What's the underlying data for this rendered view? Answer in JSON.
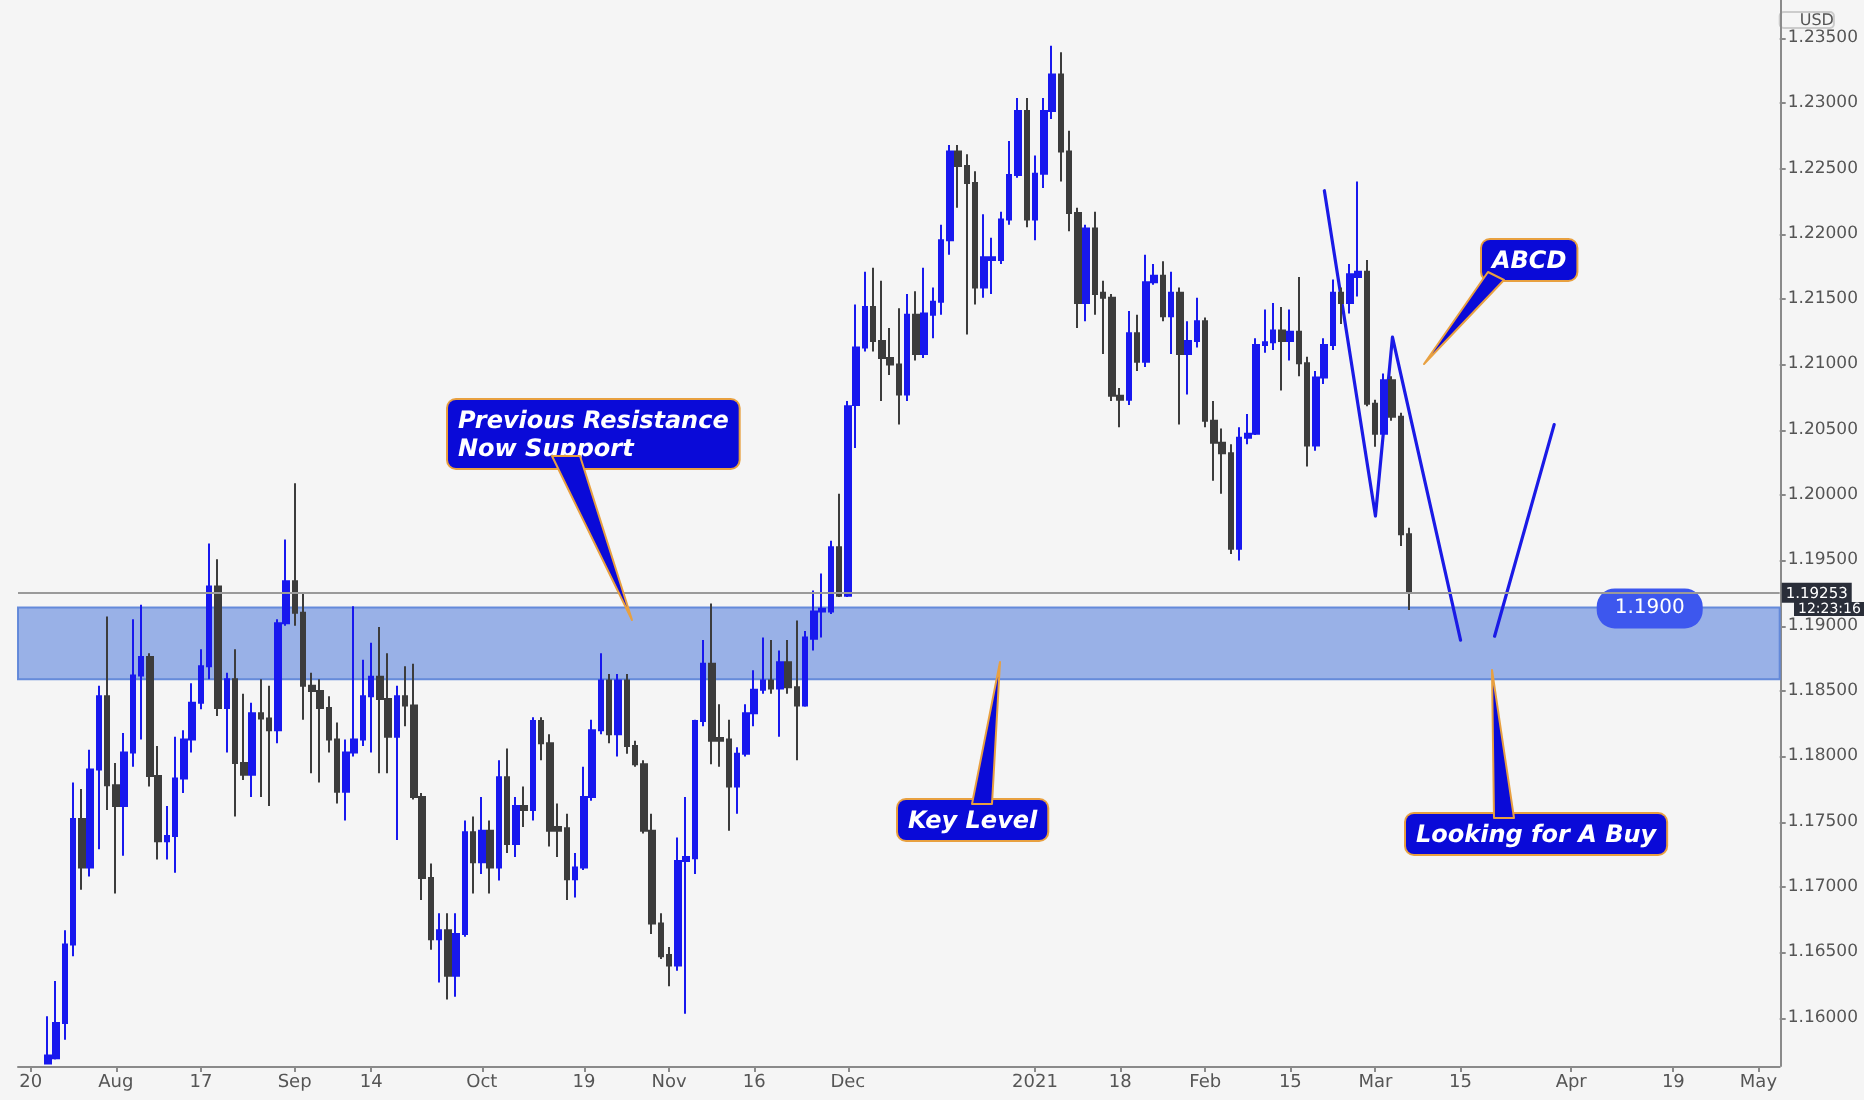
{
  "chart_data": {
    "type": "candlestick",
    "ylabel": "USD",
    "categories": [
      null,
      "20",
      null,
      null,
      null,
      null,
      null,
      null,
      null,
      null,
      null,
      "Aug",
      null,
      null,
      null,
      null,
      null,
      null,
      null,
      null,
      null,
      "17",
      null,
      null,
      null,
      null,
      null,
      null,
      null,
      null,
      null,
      null,
      "Sep",
      null,
      null,
      null,
      null,
      null,
      null,
      null,
      null,
      "14",
      null,
      null,
      null,
      null,
      null,
      null,
      null,
      null,
      null,
      null,
      null,
      null,
      "Oct",
      null,
      null,
      null,
      null,
      null,
      null,
      null,
      null,
      null,
      null,
      null,
      "19",
      null,
      null,
      null,
      null,
      null,
      null,
      null,
      null,
      null,
      "Nov",
      null,
      null,
      null,
      null,
      null,
      null,
      null,
      null,
      null,
      "16",
      null,
      null,
      null,
      null,
      null,
      null,
      null,
      null,
      null,
      null,
      "Dec",
      null,
      null,
      null,
      null,
      null,
      null,
      null,
      null,
      null,
      null,
      null,
      null,
      null,
      null,
      null,
      null,
      null,
      null,
      null,
      null,
      null,
      "2021",
      null,
      null,
      null,
      null,
      null,
      null,
      null,
      null,
      null,
      "18",
      null,
      null,
      null,
      null,
      null,
      null,
      null,
      null,
      null,
      "Feb",
      null,
      null,
      null,
      null,
      null,
      null,
      null,
      null,
      null,
      "15",
      null,
      null,
      null,
      null,
      null,
      null,
      null,
      null,
      null,
      "Mar",
      null,
      null,
      null,
      null,
      null,
      null,
      null,
      null,
      null,
      "15",
      null,
      null,
      null,
      null,
      null,
      null,
      null,
      null,
      null,
      null,
      null,
      null,
      "Apr",
      null,
      null,
      null,
      null,
      null,
      null,
      null,
      null,
      null,
      null,
      null,
      "19",
      null,
      null,
      null,
      null,
      null,
      null,
      null,
      null,
      null,
      "May",
      null,
      null
    ],
    "ohlc": [
      null,
      null,
      null,
      [
        1.1565,
        1.1601,
        1.1565,
        1.1571
      ],
      [
        1.1569,
        1.1628,
        1.1568,
        1.1596
      ],
      [
        1.1596,
        1.1667,
        1.1583,
        1.1656
      ],
      [
        1.1656,
        1.178,
        1.1647,
        1.1752
      ],
      [
        1.1752,
        1.1775,
        1.1698,
        1.1715
      ],
      [
        1.1715,
        1.1805,
        1.1708,
        1.179
      ],
      [
        1.179,
        1.1854,
        1.1729,
        1.1846
      ],
      [
        1.1846,
        1.1907,
        1.1759,
        1.1778
      ],
      [
        1.1778,
        1.1795,
        1.1695,
        1.1762
      ],
      [
        1.1762,
        1.1818,
        1.1724,
        1.1803
      ],
      [
        1.1803,
        1.1905,
        1.1792,
        1.1862
      ],
      [
        1.1862,
        1.1916,
        1.1813,
        1.1876
      ],
      [
        1.1876,
        1.1879,
        1.1777,
        1.1785
      ],
      [
        1.1785,
        1.1808,
        1.1721,
        1.1735
      ],
      [
        1.1735,
        1.1762,
        1.1721,
        1.1739
      ],
      [
        1.1739,
        1.1815,
        1.1711,
        1.1783
      ],
      [
        1.1783,
        1.182,
        1.1772,
        1.1813
      ],
      [
        1.1813,
        1.1856,
        1.1803,
        1.1841
      ],
      [
        1.1841,
        1.1882,
        1.1836,
        1.1869
      ],
      [
        1.1869,
        1.1963,
        1.1859,
        1.193
      ],
      [
        1.193,
        1.1951,
        1.1831,
        1.1837
      ],
      [
        1.1837,
        1.1864,
        1.1803,
        1.1859
      ],
      [
        1.1859,
        1.1882,
        1.1754,
        1.1795
      ],
      [
        1.1795,
        1.1848,
        1.1782,
        1.1786
      ],
      [
        1.1786,
        1.1841,
        1.1769,
        1.1833
      ],
      [
        1.1833,
        1.1859,
        1.1769,
        1.1829
      ],
      [
        1.1829,
        1.1854,
        1.1762,
        1.182
      ],
      [
        1.182,
        1.1905,
        1.181,
        1.1902
      ],
      [
        1.1902,
        1.1966,
        1.19,
        1.1934
      ],
      [
        1.1934,
        1.2009,
        1.19,
        1.191
      ],
      [
        1.191,
        1.1925,
        1.1828,
        1.1854
      ],
      [
        1.1854,
        1.1864,
        1.1787,
        1.185
      ],
      [
        1.185,
        1.1859,
        1.178,
        1.1837
      ],
      [
        1.1837,
        1.1846,
        1.1803,
        1.1813
      ],
      [
        1.1813,
        1.1826,
        1.1764,
        1.1773
      ],
      [
        1.1773,
        1.1813,
        1.1751,
        1.1803
      ],
      [
        1.1803,
        1.1915,
        1.18,
        1.1813
      ],
      [
        1.1813,
        1.1874,
        1.1808,
        1.1846
      ],
      [
        1.1846,
        1.1887,
        1.1803,
        1.1861
      ],
      [
        1.1861,
        1.1899,
        1.1787,
        1.1844
      ],
      [
        1.1844,
        1.1879,
        1.1787,
        1.1815
      ],
      [
        1.1815,
        1.1854,
        1.1736,
        1.1846
      ],
      [
        1.1846,
        1.1869,
        1.1823,
        1.1839
      ],
      [
        1.1839,
        1.1871,
        1.1767,
        1.1769
      ],
      [
        1.1769,
        1.1772,
        1.169,
        1.1707
      ],
      [
        1.1707,
        1.1718,
        1.1652,
        1.166
      ],
      [
        1.166,
        1.168,
        1.1627,
        1.1667
      ],
      [
        1.1667,
        1.168,
        1.1614,
        1.1632
      ],
      [
        1.1632,
        1.168,
        1.1616,
        1.1664
      ],
      [
        1.1664,
        1.1751,
        1.1662,
        1.1742
      ],
      [
        1.1742,
        1.1754,
        1.1695,
        1.1719
      ],
      [
        1.1719,
        1.1769,
        1.171,
        1.1743
      ],
      [
        1.1743,
        1.1751,
        1.1695,
        1.1715
      ],
      [
        1.1715,
        1.1797,
        1.1705,
        1.1784
      ],
      [
        1.1784,
        1.1806,
        1.1726,
        1.1733
      ],
      [
        1.1733,
        1.1769,
        1.1723,
        1.1762
      ],
      [
        1.1762,
        1.1777,
        1.1746,
        1.1759
      ],
      [
        1.1759,
        1.183,
        1.1751,
        1.1827
      ],
      [
        1.1827,
        1.183,
        1.1797,
        1.181
      ],
      [
        1.181,
        1.1817,
        1.1731,
        1.1743
      ],
      [
        1.1746,
        1.1764,
        1.1723,
        1.1743
      ],
      [
        1.1745,
        1.1756,
        1.169,
        1.1706
      ],
      [
        1.1706,
        1.1726,
        1.1692,
        1.1715
      ],
      [
        1.1715,
        1.1792,
        1.1713,
        1.1769
      ],
      [
        1.1769,
        1.1828,
        1.1766,
        1.182
      ],
      [
        1.182,
        1.1879,
        1.1817,
        1.1858
      ],
      [
        1.1858,
        1.1863,
        1.181,
        1.1817
      ],
      [
        1.1817,
        1.1863,
        1.18,
        1.1858
      ],
      [
        1.1858,
        1.1863,
        1.1802,
        1.1808
      ],
      [
        1.1808,
        1.1812,
        1.1792,
        1.1794
      ],
      [
        1.1794,
        1.1797,
        1.1741,
        1.1743
      ],
      [
        1.1743,
        1.1756,
        1.1664,
        1.1672
      ],
      [
        1.1672,
        1.168,
        1.1645,
        1.1647
      ],
      [
        1.1648,
        1.1654,
        1.1624,
        1.164
      ],
      [
        1.164,
        1.1738,
        1.1636,
        1.172
      ],
      [
        1.172,
        1.1769,
        1.1603,
        1.1723
      ],
      [
        1.1722,
        1.1828,
        1.171,
        1.1827
      ],
      [
        1.1827,
        1.1889,
        1.1823,
        1.1871
      ],
      [
        1.1871,
        1.1917,
        1.1794,
        1.1812
      ],
      [
        1.1814,
        1.184,
        1.1792,
        1.1812
      ],
      [
        1.1813,
        1.1828,
        1.1743,
        1.1777
      ],
      [
        1.1777,
        1.1807,
        1.1756,
        1.1802
      ],
      [
        1.1802,
        1.184,
        1.18,
        1.1833
      ],
      [
        1.1833,
        1.1866,
        1.1823,
        1.1851
      ],
      [
        1.1851,
        1.1891,
        1.1848,
        1.1858
      ],
      [
        1.1858,
        1.1889,
        1.1848,
        1.1852
      ],
      [
        1.1852,
        1.1881,
        1.1815,
        1.1872
      ],
      [
        1.1872,
        1.1889,
        1.1848,
        1.1853
      ],
      [
        1.1853,
        1.1904,
        1.1797,
        1.1839
      ],
      [
        1.1839,
        1.1896,
        1.1838,
        1.1891
      ],
      [
        1.189,
        1.1927,
        1.1881,
        1.1911
      ],
      [
        1.1911,
        1.194,
        1.1891,
        1.1913
      ],
      [
        1.1911,
        1.1965,
        1.1909,
        1.196
      ],
      [
        1.196,
        1.2001,
        1.1922,
        1.1923
      ],
      [
        1.1923,
        1.2072,
        1.1922,
        1.2068
      ],
      [
        1.2069,
        1.2146,
        1.2036,
        1.2113
      ],
      [
        1.2113,
        1.2171,
        1.211,
        1.2144
      ],
      [
        1.2144,
        1.2174,
        1.211,
        1.2118
      ],
      [
        1.2118,
        1.2164,
        1.2072,
        1.2105
      ],
      [
        1.2105,
        1.2128,
        1.2092,
        1.21
      ],
      [
        1.21,
        1.2143,
        1.2054,
        1.2077
      ],
      [
        1.2077,
        1.2154,
        1.2072,
        1.2138
      ],
      [
        1.2138,
        1.2156,
        1.2103,
        1.2108
      ],
      [
        1.2108,
        1.2174,
        1.2105,
        1.2139
      ],
      [
        1.2138,
        1.2159,
        1.212,
        1.2148
      ],
      [
        1.2148,
        1.2207,
        1.2138,
        1.2195
      ],
      [
        1.2195,
        1.2268,
        1.2184,
        1.2263
      ],
      [
        1.2263,
        1.2268,
        1.222,
        1.2252
      ],
      [
        1.2252,
        1.2261,
        1.2123,
        1.2239
      ],
      [
        1.2239,
        1.2248,
        1.2146,
        1.2159
      ],
      [
        1.2159,
        1.2215,
        1.2151,
        1.2182
      ],
      [
        1.218,
        1.2197,
        1.2154,
        1.2182
      ],
      [
        1.218,
        1.2217,
        1.2177,
        1.2211
      ],
      [
        1.2211,
        1.2271,
        1.2207,
        1.2245
      ],
      [
        1.2245,
        1.2304,
        1.2243,
        1.2294
      ],
      [
        1.2294,
        1.2304,
        1.2205,
        1.2211
      ],
      [
        1.2211,
        1.226,
        1.2195,
        1.2246
      ],
      [
        1.2246,
        1.2304,
        1.2235,
        1.2294
      ],
      [
        1.2294,
        1.2344,
        1.2288,
        1.2322
      ],
      [
        1.2322,
        1.2339,
        1.224,
        1.2263
      ],
      [
        1.2263,
        1.2279,
        1.2202,
        1.2216
      ],
      [
        1.2216,
        1.222,
        1.2128,
        1.2147
      ],
      [
        1.2147,
        1.2207,
        1.2133,
        1.2204
      ],
      [
        1.2204,
        1.2217,
        1.2138,
        1.2154
      ],
      [
        1.2155,
        1.2164,
        1.2108,
        1.2151
      ],
      [
        1.2151,
        1.2154,
        1.2072,
        1.2076
      ],
      [
        1.2076,
        1.2082,
        1.2052,
        1.2073
      ],
      [
        1.2073,
        1.2141,
        1.2069,
        1.2124
      ],
      [
        1.2124,
        1.2138,
        1.2095,
        1.2102
      ],
      [
        1.2102,
        1.2184,
        1.2098,
        1.2163
      ],
      [
        1.2163,
        1.2177,
        1.2161,
        1.2168
      ],
      [
        1.2168,
        1.2179,
        1.2133,
        1.2137
      ],
      [
        1.2137,
        1.2171,
        1.2108,
        1.2155
      ],
      [
        1.2155,
        1.2159,
        1.2054,
        1.2108
      ],
      [
        1.2108,
        1.2133,
        1.2077,
        1.2118
      ],
      [
        1.2118,
        1.2151,
        1.2113,
        1.2133
      ],
      [
        1.2133,
        1.2136,
        1.2052,
        1.2057
      ],
      [
        1.2057,
        1.2072,
        1.2011,
        1.204
      ],
      [
        1.204,
        1.2051,
        1.2001,
        1.2032
      ],
      [
        1.2032,
        1.2039,
        1.1955,
        1.1959
      ],
      [
        1.1959,
        1.2052,
        1.195,
        1.2044
      ],
      [
        1.2044,
        1.2062,
        1.2039,
        1.2047
      ],
      [
        1.2047,
        1.212,
        1.2046,
        1.2115
      ],
      [
        1.2115,
        1.2142,
        1.2109,
        1.2117
      ],
      [
        1.2117,
        1.2147,
        1.2111,
        1.2126
      ],
      [
        1.2126,
        1.2144,
        1.208,
        1.2118
      ],
      [
        1.2118,
        1.2142,
        1.2103,
        1.2125
      ],
      [
        1.2125,
        1.2167,
        1.2091,
        1.2101
      ],
      [
        1.2101,
        1.2106,
        1.2022,
        1.2038
      ],
      [
        1.2038,
        1.2095,
        1.2034,
        1.209
      ],
      [
        1.209,
        1.212,
        1.2085,
        1.2115
      ],
      [
        1.2115,
        1.2165,
        1.2111,
        1.2155
      ],
      [
        1.2155,
        1.2159,
        1.2131,
        1.2147
      ],
      [
        1.2147,
        1.2177,
        1.2139,
        1.2169
      ],
      [
        1.2167,
        1.224,
        1.2152,
        1.2171
      ],
      [
        1.2171,
        1.218,
        1.2068,
        1.207
      ],
      [
        1.207,
        1.2073,
        1.2037,
        1.2047
      ],
      [
        1.2047,
        1.2093,
        1.2045,
        1.2088
      ],
      [
        1.2088,
        1.2091,
        1.2057,
        1.206
      ],
      [
        1.206,
        1.2063,
        1.1961,
        1.197
      ],
      [
        1.197,
        1.1975,
        1.1912,
        1.1925
      ],
      null,
      null,
      null,
      null,
      null,
      null,
      null,
      null,
      null,
      null,
      null,
      null,
      null,
      null,
      null,
      null,
      null,
      null,
      null,
      null,
      null,
      null,
      null,
      null,
      null,
      null,
      null,
      null,
      null,
      null,
      null,
      null,
      null,
      null,
      null,
      null,
      null,
      null,
      null,
      null,
      null,
      null,
      null
    ],
    "colors": [
      null,
      null,
      null,
      "#1818ee",
      "#1818ee",
      "#1818ee",
      "#1818ee",
      "#3c3c3c",
      "#1818ee",
      "#1818ee",
      "#3c3c3c",
      "#3c3c3c",
      "#1818ee",
      "#1818ee",
      "#1818ee",
      "#3c3c3c",
      "#3c3c3c",
      "#1818ee",
      "#1818ee",
      "#1818ee",
      "#1818ee",
      "#1818ee",
      "#1818ee",
      "#3c3c3c",
      "#1818ee",
      "#3c3c3c",
      "#3c3c3c",
      "#1818ee",
      "#3c3c3c",
      "#3c3c3c",
      "#1818ee",
      "#1818ee",
      "#3c3c3c",
      "#3c3c3c",
      "#3c3c3c",
      "#3c3c3c",
      "#3c3c3c",
      "#3c3c3c",
      "#1818ee",
      "#1818ee",
      "#1818ee",
      "#1818ee",
      "#3c3c3c",
      "#3c3c3c",
      "#1818ee",
      "#3c3c3c",
      "#3c3c3c",
      "#3c3c3c",
      "#3c3c3c",
      "#1818ee",
      "#3c3c3c",
      "#1818ee",
      "#1818ee",
      "#3c3c3c",
      "#1818ee",
      "#3c3c3c",
      "#1818ee",
      "#3c3c3c",
      "#1818ee",
      "#3c3c3c",
      "#1818ee",
      "#3c3c3c",
      "#3c3c3c",
      "#3c3c3c",
      "#3c3c3c",
      "#1818ee",
      "#1818ee",
      "#1818ee",
      "#1818ee",
      "#3c3c3c",
      "#1818ee",
      "#3c3c3c",
      "#3c3c3c",
      "#3c3c3c",
      "#3c3c3c",
      "#3c3c3c",
      "#3c3c3c",
      "#1818ee",
      "#1818ee",
      "#1818ee",
      "#1818ee",
      "#3c3c3c",
      "#3c3c3c",
      "#3c3c3c",
      "#1818ee",
      "#1818ee",
      "#1818ee",
      "#1818ee",
      "#3c3c3c",
      "#1818ee",
      "#3c3c3c",
      "#3c3c3c",
      "#1818ee",
      "#1818ee",
      "#1818ee",
      "#1818ee",
      "#3c3c3c",
      "#1818ee",
      "#1818ee",
      "#1818ee",
      "#3c3c3c",
      "#3c3c3c",
      "#3c3c3c",
      "#3c3c3c",
      "#1818ee",
      "#3c3c3c",
      "#1818ee",
      "#1818ee",
      "#1818ee",
      "#1818ee",
      "#3c3c3c",
      "#3c3c3c",
      "#3c3c3c",
      "#1818ee",
      "#1818ee",
      "#1818ee",
      "#1818ee",
      "#1818ee",
      "#3c3c3c",
      "#1818ee",
      "#1818ee",
      "#1818ee",
      "#3c3c3c",
      "#3c3c3c",
      "#3c3c3c",
      "#1818ee",
      "#3c3c3c",
      "#3c3c3c",
      "#3c3c3c",
      "#3c3c3c",
      "#1818ee",
      "#3c3c3c",
      "#1818ee",
      "#1818ee",
      "#3c3c3c",
      "#1818ee",
      "#3c3c3c",
      "#1818ee",
      "#1818ee",
      "#3c3c3c",
      "#3c3c3c",
      "#3c3c3c",
      "#3c3c3c",
      "#1818ee",
      "#1818ee",
      "#1818ee",
      "#1818ee",
      "#1818ee",
      "#3c3c3c",
      "#1818ee",
      "#3c3c3c",
      "#3c3c3c",
      "#1818ee",
      "#1818ee",
      "#1818ee",
      "#3c3c3c",
      "#1818ee",
      "#1818ee",
      "#3c3c3c",
      "#3c3c3c",
      "#1818ee",
      "#3c3c3c",
      "#3c3c3c",
      "#3c3c3c",
      null,
      null,
      null,
      null,
      null,
      null,
      null,
      null,
      null,
      null,
      null,
      null,
      null,
      null,
      null,
      null,
      null,
      null,
      null,
      null,
      null,
      null,
      null,
      null,
      null,
      null,
      null,
      null,
      null,
      null,
      null,
      null,
      null,
      null,
      null,
      null,
      null,
      null,
      null,
      null,
      null,
      null,
      null
    ],
    "series": [
      {
        "type": "line",
        "color": "#1a1ae6",
        "values": [
          null,
          null,
          null,
          null,
          null,
          null,
          null,
          null,
          null,
          null,
          null,
          null,
          null,
          null,
          null,
          null,
          null,
          null,
          null,
          null,
          null,
          null,
          null,
          null,
          null,
          null,
          null,
          null,
          null,
          null,
          null,
          null,
          null,
          null,
          null,
          null,
          null,
          null,
          null,
          null,
          null,
          null,
          null,
          null,
          null,
          null,
          null,
          null,
          null,
          null,
          null,
          null,
          null,
          null,
          null,
          null,
          null,
          null,
          null,
          null,
          null,
          null,
          null,
          null,
          null,
          null,
          null,
          null,
          null,
          null,
          null,
          null,
          null,
          null,
          null,
          null,
          null,
          null,
          null,
          null,
          null,
          null,
          null,
          null,
          null,
          null,
          null,
          null,
          null,
          null,
          null,
          null,
          null,
          null,
          null,
          null,
          null,
          null,
          null,
          null,
          null,
          null,
          null,
          null,
          null,
          null,
          null,
          null,
          null,
          null,
          null,
          null,
          null,
          null,
          null,
          null,
          null,
          null,
          null,
          null,
          null,
          null,
          null,
          null,
          null,
          null,
          null,
          null,
          null,
          null,
          null,
          null,
          null,
          null,
          null,
          null,
          null,
          null,
          null,
          null,
          null,
          null,
          null,
          null,
          null,
          null,
          null,
          null,
          null,
          null,
          null,
          null,
          null,
          1.2233,
          null,
          null,
          null,
          null,
          null,
          1.1984,
          null,
          1.2121,
          null,
          null,
          null,
          null,
          null,
          null,
          null,
          1.1889,
          null,
          null,
          null,
          null,
          null,
          null,
          null,
          null,
          null,
          null,
          null,
          null,
          null,
          null,
          null,
          null,
          null,
          null,
          null,
          null,
          null,
          null,
          null,
          null,
          null,
          null,
          null,
          null,
          null,
          null,
          null,
          null,
          null,
          null,
          null,
          null,
          null
        ]
      },
      {
        "type": "line",
        "color": "#1a1ae6",
        "values": [
          null,
          null,
          null,
          null,
          null,
          null,
          null,
          null,
          null,
          null,
          null,
          null,
          null,
          null,
          null,
          null,
          null,
          null,
          null,
          null,
          null,
          null,
          null,
          null,
          null,
          null,
          null,
          null,
          null,
          null,
          null,
          null,
          null,
          null,
          null,
          null,
          null,
          null,
          null,
          null,
          null,
          null,
          null,
          null,
          null,
          null,
          null,
          null,
          null,
          null,
          null,
          null,
          null,
          null,
          null,
          null,
          null,
          null,
          null,
          null,
          null,
          null,
          null,
          null,
          null,
          null,
          null,
          null,
          null,
          null,
          null,
          null,
          null,
          null,
          null,
          null,
          null,
          null,
          null,
          null,
          null,
          null,
          null,
          null,
          null,
          null,
          null,
          null,
          null,
          null,
          null,
          null,
          null,
          null,
          null,
          null,
          null,
          null,
          null,
          null,
          null,
          null,
          null,
          null,
          null,
          null,
          null,
          null,
          null,
          null,
          null,
          null,
          null,
          null,
          null,
          null,
          null,
          null,
          null,
          null,
          null,
          null,
          null,
          null,
          null,
          null,
          null,
          null,
          null,
          null,
          null,
          null,
          null,
          null,
          null,
          null,
          null,
          null,
          null,
          null,
          null,
          null,
          null,
          null,
          null,
          null,
          null,
          null,
          null,
          null,
          null,
          null,
          null,
          null,
          null,
          null,
          null,
          null,
          null,
          null,
          null,
          null,
          null,
          null,
          null,
          null,
          null,
          null,
          null,
          null,
          null,
          null,
          null,
          1.1892,
          null,
          null,
          null,
          null,
          null,
          null,
          1.2054,
          null,
          null,
          null,
          null,
          null,
          null,
          null,
          null,
          null,
          null,
          null,
          null,
          null,
          null,
          null,
          null,
          null,
          null,
          null,
          null,
          null,
          null,
          null,
          null,
          null,
          null
        ]
      }
    ],
    "ylim": [
      1.1563,
      1.2379
    ],
    "yticks": [
      {
        "value": 1.16,
        "label": "1.16000"
      },
      {
        "value": 1.165,
        "label": "1.16500"
      },
      {
        "value": 1.17,
        "label": "1.17000"
      },
      {
        "value": 1.175,
        "label": "1.17500"
      },
      {
        "value": 1.18,
        "label": "1.18000"
      },
      {
        "value": 1.185,
        "label": "1.18500"
      },
      {
        "value": 1.19,
        "label": "1.19000"
      },
      {
        "value": 1.195,
        "label": "1.19500"
      },
      {
        "value": 1.2,
        "label": "1.20000"
      },
      {
        "value": 1.205,
        "label": "1.20500"
      },
      {
        "value": 1.21,
        "label": "1.21000"
      },
      {
        "value": 1.215,
        "label": "1.21500"
      },
      {
        "value": 1.22,
        "label": "1.22000"
      },
      {
        "value": 1.225,
        "label": "1.22500"
      },
      {
        "value": 1.23,
        "label": "1.23000"
      },
      {
        "value": 1.235,
        "label": "1.23500"
      }
    ],
    "ref_lines": [
      {
        "axis": "y",
        "value": 1.19253,
        "label": "1.19253",
        "color": "#9a9a9a"
      }
    ],
    "bands": [
      {
        "axis": "y",
        "from": 1.1859,
        "to": 1.1914,
        "label": "1.1900",
        "color": "#93ade6"
      }
    ],
    "annotations": [
      "Previous Resistance\nNow Support",
      "Key Level",
      "ABCD",
      "Looking for A Buy",
      "12:23:16"
    ]
  }
}
